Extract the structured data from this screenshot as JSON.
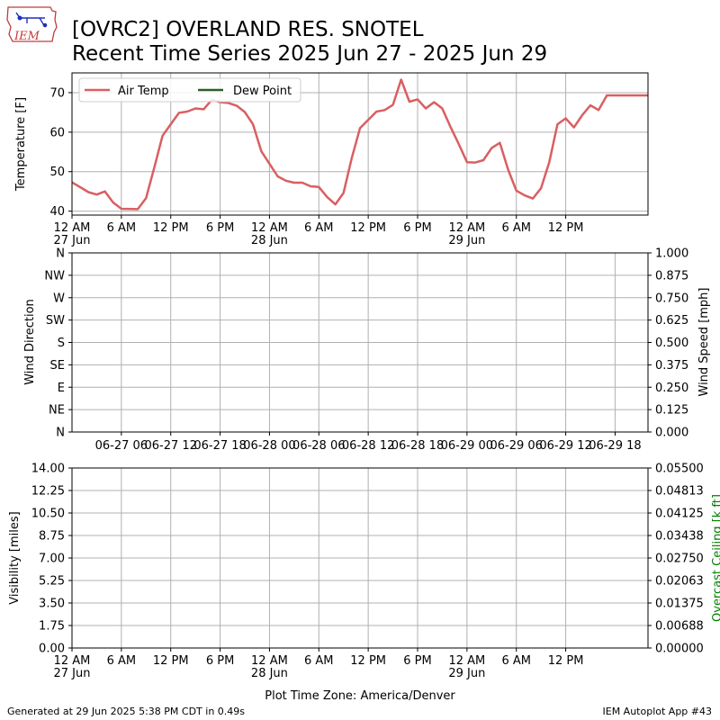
{
  "header": {
    "logo_text": "IEM",
    "title_line1": "[OVRC2] OVERLAND RES. SNOTEL",
    "title_line2": "Recent Time Series 2025 Jun 27 - 2025 Jun 29"
  },
  "colors": {
    "air_temp": "#d95f61",
    "dew_point": "#2e5e2e",
    "grid": "#b0b0b0",
    "ceiling_label": "#008000"
  },
  "time_axis": {
    "tick_labels": [
      "12 AM",
      "6 AM",
      "12 PM",
      "6 PM",
      "12 AM",
      "6 AM",
      "12 PM",
      "6 PM",
      "12 AM",
      "6 AM",
      "12 PM"
    ],
    "day_labels": [
      "27 Jun",
      "28 Jun",
      "29 Jun"
    ]
  },
  "chart_data": [
    {
      "type": "line",
      "ylabel": "Temperature [F]",
      "ylim": [
        39,
        75
      ],
      "yticks": [
        40,
        50,
        60,
        70
      ],
      "x_hours_since_midnight_jun27": [
        0,
        2,
        3,
        4,
        5,
        6,
        8,
        9,
        10,
        11,
        12,
        13,
        14,
        15,
        16,
        17,
        18,
        19,
        20,
        21,
        22,
        23,
        24,
        25,
        26,
        27,
        28,
        29,
        30,
        31,
        32,
        33,
        34,
        35,
        36,
        37,
        38,
        39,
        40,
        41,
        42,
        43,
        44,
        45,
        46,
        47,
        48,
        49,
        50,
        51,
        52,
        53,
        54,
        55,
        56,
        57,
        58,
        59,
        60,
        61,
        62,
        63,
        64,
        65,
        66,
        67,
        68,
        69,
        70
      ],
      "series": [
        {
          "name": "Air Temp",
          "values": [
            47.3,
            44.8,
            44.2,
            45.0,
            42.2,
            40.6,
            40.5,
            43.3,
            51.0,
            59.1,
            62.0,
            64.9,
            65.2,
            66.0,
            65.8,
            68.2,
            67.6,
            67.4,
            66.7,
            65.1,
            62.0,
            55.2,
            52.0,
            48.8,
            47.7,
            47.2,
            47.2,
            46.3,
            46.1,
            43.6,
            41.7,
            44.6,
            53.5,
            61.0,
            63.1,
            65.2,
            65.6,
            66.9,
            73.3,
            67.7,
            68.3,
            66.0,
            67.6,
            66.0,
            61.3,
            57.0,
            52.4,
            52.3,
            52.9,
            56.0,
            57.3,
            50.5,
            45.2,
            44.0,
            43.2,
            45.8,
            52.4,
            62.0,
            63.5,
            61.2,
            64.3,
            66.8,
            65.6,
            69.3,
            69.3,
            69.3,
            69.3,
            69.3,
            69.3
          ]
        },
        {
          "name": "Dew Point",
          "values": []
        }
      ]
    },
    {
      "type": "line",
      "ylabel": "Wind Direction",
      "ylabel_right": "Wind Speed [mph]",
      "yticks_left": [
        "N",
        "NE",
        "E",
        "SE",
        "S",
        "SW",
        "W",
        "NW",
        "N"
      ],
      "yticks_right": [
        "0.000",
        "0.125",
        "0.250",
        "0.375",
        "0.500",
        "0.625",
        "0.750",
        "0.875",
        "1.000"
      ],
      "xtick_labels": [
        "06-27 06",
        "06-27 12",
        "06-27 18",
        "06-28 00",
        "06-28 06",
        "06-28 12",
        "06-28 18",
        "06-29 00",
        "06-29 06",
        "06-29 12",
        "06-29 18"
      ],
      "series": []
    },
    {
      "type": "line",
      "ylabel": "Visibility [miles]",
      "ylabel_right": "Overcast Ceiling [k ft]",
      "yticks_left": [
        "0.00",
        "1.75",
        "3.50",
        "5.25",
        "7.00",
        "8.75",
        "10.50",
        "12.25",
        "14.00"
      ],
      "yticks_right": [
        "0.00000",
        "0.00688",
        "0.01375",
        "0.02063",
        "0.02750",
        "0.03438",
        "0.04125",
        "0.04813",
        "0.05500"
      ],
      "xlabel": "Plot Time Zone: America/Denver",
      "series": []
    }
  ],
  "footer": {
    "generated": "Generated at 29 Jun 2025 5:38 PM CDT in 0.49s",
    "app": "IEM Autoplot App #43"
  }
}
